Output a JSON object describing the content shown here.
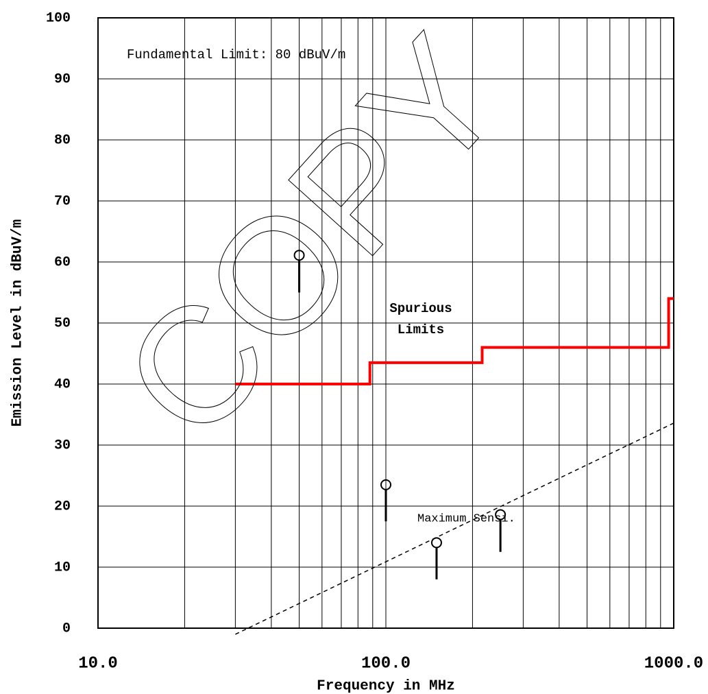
{
  "chart_data": {
    "type": "line",
    "xlabel": "Frequency in MHz",
    "ylabel": "Emission Level in dBuV/m",
    "xscale": "log",
    "xlim": [
      10,
      1000
    ],
    "ylim": [
      0,
      100
    ],
    "xticks": [
      {
        "value": 10,
        "label": "10.0"
      },
      {
        "value": 100,
        "label": "100.0"
      },
      {
        "value": 1000,
        "label": "1000.0"
      }
    ],
    "xminor": [
      20,
      30,
      40,
      50,
      60,
      70,
      80,
      90,
      200,
      300,
      400,
      500,
      600,
      700,
      800,
      900
    ],
    "yticks": [
      0,
      10,
      20,
      30,
      40,
      50,
      60,
      70,
      80,
      90,
      100
    ],
    "grid": true,
    "annotations": [
      "Fundamental Limit: 80 dBuV/m",
      "Spurious",
      "Limits",
      "Maximum Sensi."
    ],
    "watermark": "COPY",
    "limit_line": {
      "color": "#ff0000",
      "x": [
        30,
        88,
        88,
        216,
        216,
        960,
        960,
        1000
      ],
      "values": [
        40,
        40,
        43.5,
        43.5,
        46,
        46,
        54,
        54
      ]
    },
    "sensitivity_line": {
      "color": "#000000",
      "x": [
        30,
        1000
      ],
      "values": [
        -1,
        33.6
      ]
    },
    "measurements": {
      "color": "#000000",
      "x": [
        50,
        100,
        150,
        250
      ],
      "values": [
        61.1,
        23.5,
        14,
        18.6
      ],
      "low_values": [
        55,
        17.5,
        8,
        12.5
      ]
    }
  }
}
